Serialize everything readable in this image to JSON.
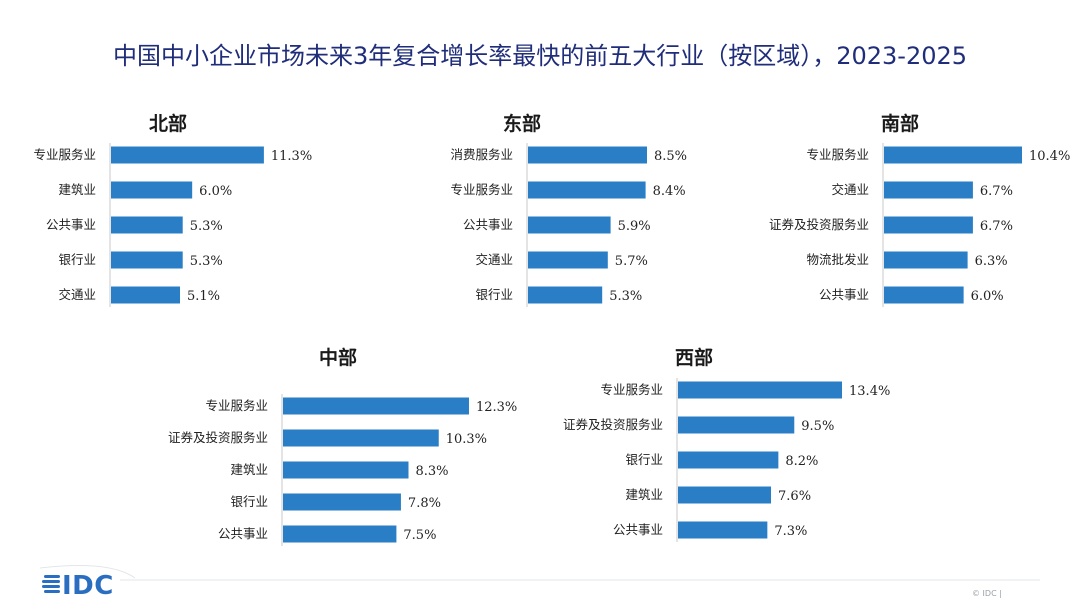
{
  "title": "中国中小企业市场未来3年复合增长率最快的前五大行业（按区域），2023-2025",
  "colors": {
    "bar": "#2a7ec5",
    "title": "#1f2d7a",
    "logo": "#2a6ec1",
    "axis": "#c8c8c8"
  },
  "logo": {
    "text": "IDC",
    "icon": "idc-stripes-icon"
  },
  "footer": {
    "text": "© IDC |"
  },
  "chart_data": [
    {
      "type": "bar",
      "orientation": "horizontal",
      "title": "北部",
      "categories": [
        "专业服务业",
        "建筑业",
        "公共事业",
        "银行业",
        "交通业"
      ],
      "values": [
        11.3,
        6.0,
        5.3,
        5.3,
        5.1
      ],
      "labels": [
        "11.3%",
        "6.0%",
        "5.3%",
        "5.3%",
        "5.1%"
      ],
      "unit": "%"
    },
    {
      "type": "bar",
      "orientation": "horizontal",
      "title": "东部",
      "categories": [
        "消费服务业",
        "专业服务业",
        "公共事业",
        "交通业",
        "银行业"
      ],
      "values": [
        8.5,
        8.4,
        5.9,
        5.7,
        5.3
      ],
      "labels": [
        "8.5%",
        "8.4%",
        "5.9%",
        "5.7%",
        "5.3%"
      ],
      "unit": "%"
    },
    {
      "type": "bar",
      "orientation": "horizontal",
      "title": "南部",
      "categories": [
        "专业服务业",
        "交通业",
        "证券及投资服务业",
        "物流批发业",
        "公共事业"
      ],
      "values": [
        10.4,
        6.7,
        6.7,
        6.3,
        6.0
      ],
      "labels": [
        "10.4%",
        "6.7%",
        "6.7%",
        "6.3%",
        "6.0%"
      ],
      "unit": "%"
    },
    {
      "type": "bar",
      "orientation": "horizontal",
      "title": "中部",
      "categories": [
        "专业服务业",
        "证券及投资服务业",
        "建筑业",
        "银行业",
        "公共事业"
      ],
      "values": [
        12.3,
        10.3,
        8.3,
        7.8,
        7.5
      ],
      "labels": [
        "12.3%",
        "10.3%",
        "8.3%",
        "7.8%",
        "7.5%"
      ],
      "unit": "%"
    },
    {
      "type": "bar",
      "orientation": "horizontal",
      "title": "西部",
      "categories": [
        "专业服务业",
        "证券及投资服务业",
        "银行业",
        "建筑业",
        "公共事业"
      ],
      "values": [
        13.4,
        9.5,
        8.2,
        7.6,
        7.3
      ],
      "labels": [
        "13.4%",
        "9.5%",
        "8.2%",
        "7.6%",
        "7.3%"
      ],
      "unit": "%"
    }
  ]
}
